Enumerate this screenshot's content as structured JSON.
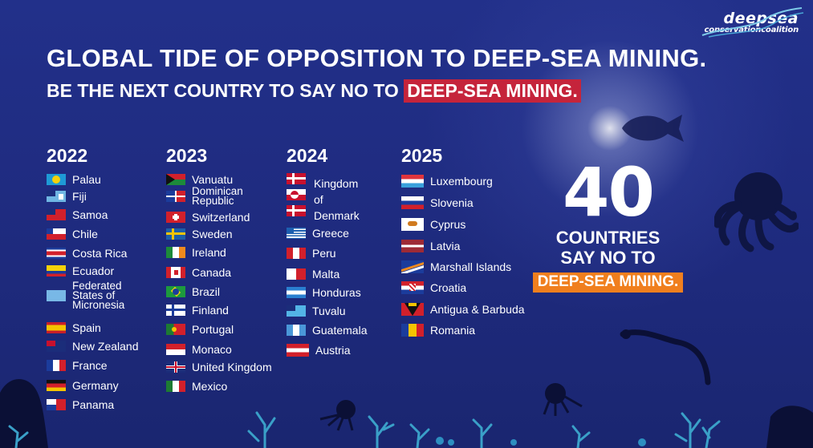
{
  "logo": {
    "line1": "deepsea",
    "line2": "conservationcoalition"
  },
  "header": {
    "title": "GLOBAL TIDE OF OPPOSITION TO DEEP-SEA MINING.",
    "subtitle_prefix": "BE THE NEXT COUNTRY TO SAY NO TO",
    "subtitle_highlight": "DEEP-SEA MINING."
  },
  "colors": {
    "background": "#1f2a7a",
    "highlight_red": "#c5243b",
    "highlight_orange": "#f07f1e"
  },
  "years": [
    {
      "year": "2022",
      "countries": [
        "Palau",
        "Fiji",
        "Samoa",
        "Chile",
        "Costa Rica",
        "Ecuador",
        "Federated States of Micronesia",
        "Spain",
        "New Zealand",
        "France",
        "Germany",
        "Panama"
      ]
    },
    {
      "year": "2023",
      "countries": [
        "Vanuatu",
        "Dominican Republic",
        "Switzerland",
        "Sweden",
        "Ireland",
        "Canada",
        "Brazil",
        "Finland",
        "Portugal",
        "Monaco",
        "United Kingdom",
        "Mexico"
      ]
    },
    {
      "year": "2024",
      "countries": [
        "Kingdom of Denmark",
        "Greece",
        "Peru",
        "Malta",
        "Honduras",
        "Tuvalu",
        "Guatemala",
        "Austria"
      ]
    },
    {
      "year": "2025",
      "countries": [
        "Luxembourg",
        "Slovenia",
        "Cyprus",
        "Latvia",
        "Marshall Islands",
        "Croatia",
        "Antigua & Barbuda",
        "Romania"
      ]
    }
  ],
  "counter": {
    "number": "40",
    "line1": "COUNTRIES",
    "line2": "SAY NO TO",
    "highlight": "DEEP-SEA MINING."
  },
  "icons": [
    "flag-icon",
    "octopus-icon",
    "fish-icon",
    "eel-icon",
    "coral-icon",
    "jellyfish-icon"
  ]
}
